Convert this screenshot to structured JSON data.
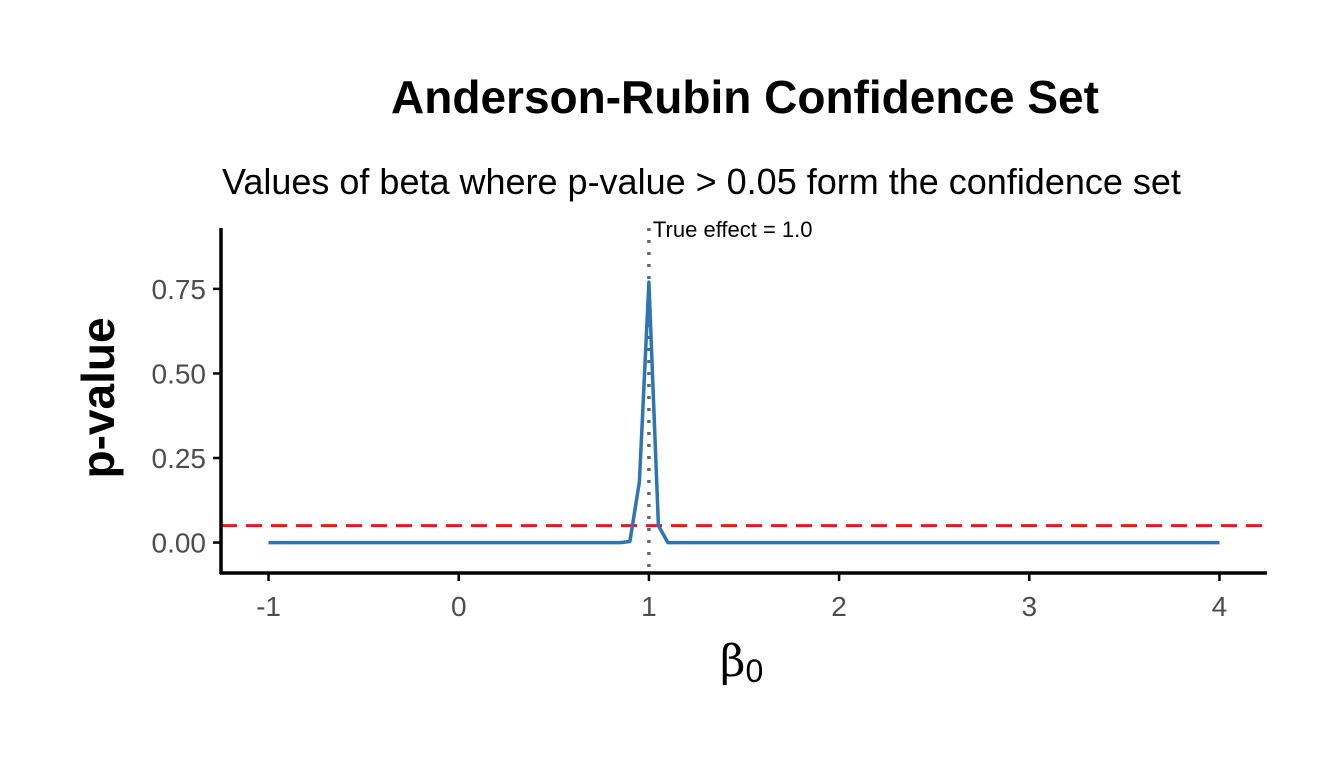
{
  "chart_data": {
    "type": "line",
    "title": "Anderson-Rubin Confidence Set",
    "subtitle": "Values of beta where p-value > 0.05 form the confidence set",
    "xlabel": "β",
    "xlabel_subscript": "0",
    "ylabel": "p-value",
    "xlim": [
      -1.25,
      4.25
    ],
    "ylim": [
      -0.09,
      0.93
    ],
    "x_ticks": [
      -1,
      0,
      1,
      2,
      3,
      4
    ],
    "x_tick_labels": [
      "-1",
      "0",
      "1",
      "2",
      "3",
      "4"
    ],
    "y_ticks": [
      0,
      0.25,
      0.5,
      0.75
    ],
    "y_tick_labels": [
      "0.00",
      "0.25",
      "0.50",
      "0.75"
    ],
    "grid": false,
    "series": [
      {
        "color": "#2e75b6",
        "x": [
          -1,
          0.5,
          0.85,
          0.9,
          0.95,
          1.0,
          1.05,
          1.1,
          4
        ],
        "y": [
          0,
          0,
          0,
          0.003,
          0.18,
          0.77,
          0.05,
          0,
          0
        ]
      }
    ],
    "reference_lines": [
      {
        "orientation": "horizontal",
        "value": 0.05,
        "style": "dashed",
        "color": "#e41a1c"
      },
      {
        "orientation": "vertical",
        "value": 1.0,
        "style": "dotted",
        "color": "#666666"
      }
    ],
    "annotations": [
      {
        "text": "True effect = 1.0",
        "x": 1.1,
        "y": 0.9
      }
    ]
  }
}
